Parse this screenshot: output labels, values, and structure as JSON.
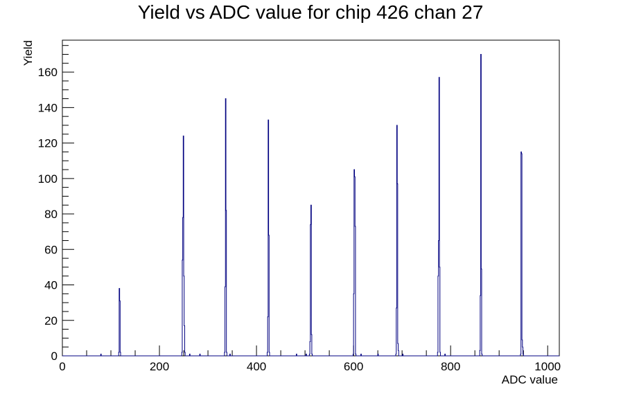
{
  "chart_data": {
    "type": "histogram",
    "title": "Yield vs ADC value for chip 426 chan 27",
    "xlabel": "ADC value",
    "ylabel": "Yield",
    "xlim": [
      0,
      1024
    ],
    "ylim": [
      0,
      178
    ],
    "x_ticks": [
      0,
      200,
      400,
      600,
      800,
      1000
    ],
    "y_ticks": [
      0,
      20,
      40,
      60,
      80,
      100,
      120,
      140,
      160
    ],
    "line_color": "#000080",
    "grid": false,
    "legend": "none",
    "peaks": [
      {
        "bins": [
          [
            116,
            2
          ],
          [
            117,
            38
          ],
          [
            118,
            31
          ],
          [
            119,
            2
          ]
        ]
      },
      {
        "bins": [
          [
            246,
            2
          ],
          [
            247,
            54
          ],
          [
            248,
            78
          ],
          [
            249,
            124
          ],
          [
            250,
            45
          ],
          [
            251,
            17
          ],
          [
            252,
            2
          ]
        ]
      },
      {
        "bins": [
          [
            334,
            2
          ],
          [
            335,
            39
          ],
          [
            336,
            145
          ],
          [
            337,
            82
          ],
          [
            338,
            2
          ]
        ]
      },
      {
        "bins": [
          [
            422,
            2
          ],
          [
            423,
            22
          ],
          [
            424,
            133
          ],
          [
            425,
            68
          ],
          [
            426,
            2
          ]
        ]
      },
      {
        "bins": [
          [
            509,
            1
          ],
          [
            510,
            8
          ],
          [
            511,
            74
          ],
          [
            512,
            85
          ],
          [
            513,
            12
          ],
          [
            514,
            1
          ]
        ]
      },
      {
        "bins": [
          [
            599,
            1
          ],
          [
            600,
            35
          ],
          [
            601,
            105
          ],
          [
            602,
            101
          ],
          [
            603,
            73
          ],
          [
            604,
            1
          ]
        ]
      },
      {
        "bins": [
          [
            687,
            1
          ],
          [
            688,
            27
          ],
          [
            689,
            130
          ],
          [
            690,
            97
          ],
          [
            691,
            7
          ],
          [
            692,
            3
          ]
        ]
      },
      {
        "bins": [
          [
            773,
            2
          ],
          [
            774,
            45
          ],
          [
            775,
            65
          ],
          [
            776,
            157
          ],
          [
            777,
            50
          ],
          [
            778,
            2
          ]
        ]
      },
      {
        "bins": [
          [
            860,
            3
          ],
          [
            861,
            34
          ],
          [
            862,
            170
          ],
          [
            863,
            49
          ],
          [
            864,
            1
          ]
        ]
      },
      {
        "bins": [
          [
            944,
            1
          ],
          [
            945,
            115
          ],
          [
            946,
            114
          ],
          [
            947,
            9
          ],
          [
            948,
            5
          ],
          [
            949,
            1
          ]
        ]
      }
    ],
    "isolated_counts": [
      [
        79,
        1
      ],
      [
        262,
        1
      ],
      [
        283,
        1
      ],
      [
        345,
        1
      ],
      [
        482,
        1
      ],
      [
        502,
        1
      ],
      [
        615,
        1
      ],
      [
        650,
        1
      ],
      [
        701,
        1
      ],
      [
        788,
        1
      ]
    ]
  }
}
